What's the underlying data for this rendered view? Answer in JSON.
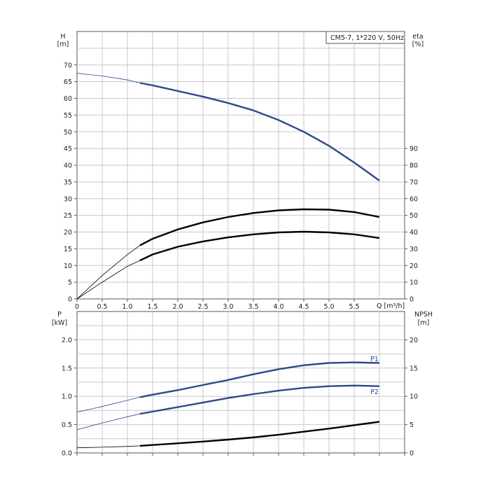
{
  "chart_data": [
    {
      "type": "line",
      "legend": "CM5-7, 1*220 V, 50Hz",
      "legend_position": "top-right",
      "grid": true,
      "xlabel": "Q [m³/h]",
      "x_ticks": [
        "0",
        "0.5",
        "1.0",
        "1.5",
        "2.0",
        "2.5",
        "3.0",
        "3.5",
        "4.0",
        "4.5",
        "5.0",
        "5.5"
      ],
      "xlim": [
        0,
        6.5
      ],
      "left_axis": {
        "label_top": "H",
        "label_unit": "[m]",
        "ylim": [
          0,
          80
        ],
        "ticks": [
          "0",
          "5",
          "10",
          "15",
          "20",
          "25",
          "30",
          "35",
          "40",
          "45",
          "50",
          "55",
          "60",
          "65",
          "70"
        ]
      },
      "right_axis": {
        "label_top": "eta",
        "label_unit": "[%]",
        "ylim": [
          0,
          160
        ],
        "ticks": [
          "0",
          "10",
          "20",
          "30",
          "40",
          "50",
          "60",
          "70",
          "80",
          "90"
        ]
      },
      "series": [
        {
          "axis": "left",
          "color": "#2d4a87",
          "range_start": 1.25,
          "x": [
            0,
            0.5,
            1.0,
            1.25,
            1.5,
            2.0,
            2.5,
            3.0,
            3.5,
            4.0,
            4.5,
            5.0,
            5.5,
            6.0
          ],
          "y": [
            67.5,
            66.7,
            65.5,
            64.6,
            63.9,
            62.2,
            60.5,
            58.6,
            56.4,
            53.5,
            50.0,
            45.8,
            40.8,
            35.4
          ]
        },
        {
          "axis": "right",
          "color": "#000000",
          "range_start": 1.25,
          "x": [
            0,
            0.5,
            1.0,
            1.25,
            1.5,
            2.0,
            2.5,
            3.0,
            3.5,
            4.0,
            4.5,
            5.0,
            5.5,
            6.0
          ],
          "y": [
            0,
            14.0,
            26.5,
            32.0,
            36.0,
            41.6,
            45.8,
            49.0,
            51.4,
            53.0,
            53.6,
            53.4,
            52.0,
            49.0
          ]
        },
        {
          "axis": "right",
          "color": "#000000",
          "range_start": 1.25,
          "x": [
            0,
            0.5,
            1.0,
            1.25,
            1.5,
            2.0,
            2.5,
            3.0,
            3.5,
            4.0,
            4.5,
            5.0,
            5.5,
            6.0
          ],
          "y": [
            0,
            10.0,
            19.5,
            23.0,
            26.6,
            31.2,
            34.4,
            36.8,
            38.6,
            39.8,
            40.2,
            39.8,
            38.6,
            36.4
          ]
        }
      ]
    },
    {
      "type": "line",
      "grid": true,
      "xlim": [
        0,
        6.5
      ],
      "left_axis": {
        "label_top": "P",
        "label_unit": "[kW]",
        "ylim": [
          0,
          2.5
        ],
        "ticks": [
          "0.0",
          "0.5",
          "1.0",
          "1.5",
          "2.0"
        ]
      },
      "right_axis": {
        "label_top": "NPSH",
        "label_unit": "[m]",
        "ylim": [
          0,
          25
        ],
        "ticks": [
          "0",
          "5",
          "10",
          "15",
          "20"
        ]
      },
      "series": [
        {
          "name": "P1",
          "axis": "left",
          "color": "#2d4a87",
          "range_start": 1.25,
          "x": [
            0,
            0.5,
            1.0,
            1.25,
            1.5,
            2.0,
            2.5,
            3.0,
            3.5,
            4.0,
            4.5,
            5.0,
            5.5,
            6.0
          ],
          "y": [
            0.72,
            0.82,
            0.93,
            0.985,
            1.03,
            1.11,
            1.2,
            1.29,
            1.39,
            1.48,
            1.55,
            1.59,
            1.6,
            1.59
          ]
        },
        {
          "name": "P2",
          "axis": "left",
          "color": "#2d4a87",
          "range_start": 1.25,
          "x": [
            0,
            0.5,
            1.0,
            1.25,
            1.5,
            2.0,
            2.5,
            3.0,
            3.5,
            4.0,
            4.5,
            5.0,
            5.5,
            6.0
          ],
          "y": [
            0.41,
            0.53,
            0.64,
            0.69,
            0.73,
            0.81,
            0.89,
            0.97,
            1.04,
            1.1,
            1.15,
            1.18,
            1.19,
            1.18
          ]
        },
        {
          "axis": "right",
          "color": "#000000",
          "range_start": 1.25,
          "x": [
            0,
            0.5,
            1.0,
            1.25,
            1.5,
            2.0,
            2.5,
            3.0,
            3.5,
            4.0,
            4.5,
            5.0,
            5.5,
            6.0
          ],
          "y": [
            0.9,
            1.0,
            1.15,
            1.25,
            1.4,
            1.7,
            2.0,
            2.35,
            2.75,
            3.2,
            3.75,
            4.3,
            4.9,
            5.5
          ]
        }
      ]
    }
  ]
}
